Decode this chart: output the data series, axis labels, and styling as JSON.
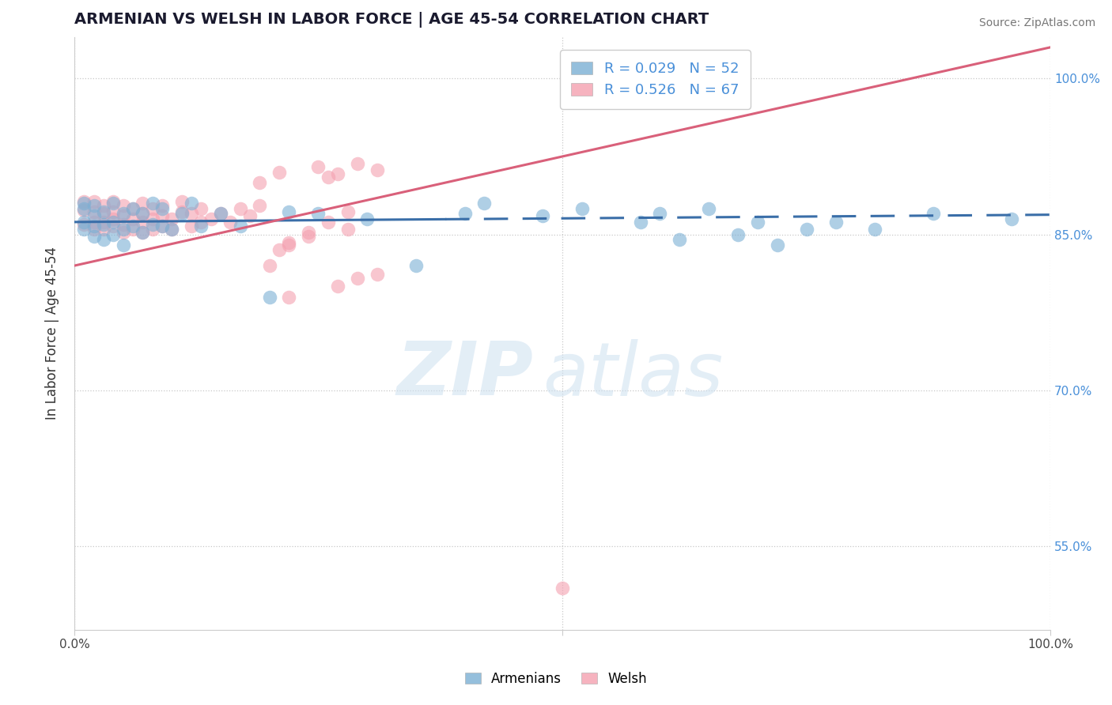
{
  "title": "ARMENIAN VS WELSH IN LABOR FORCE | AGE 45-54 CORRELATION CHART",
  "source_text": "Source: ZipAtlas.com",
  "ylabel": "In Labor Force | Age 45-54",
  "xlim": [
    0.0,
    1.0
  ],
  "ylim": [
    0.47,
    1.04
  ],
  "yticks": [
    0.55,
    0.7,
    0.85,
    1.0
  ],
  "ytick_labels": [
    "55.0%",
    "70.0%",
    "85.0%",
    "100.0%"
  ],
  "armenian_R": 0.029,
  "armenian_N": 52,
  "welsh_R": 0.526,
  "welsh_N": 67,
  "armenian_color": "#7bafd4",
  "welsh_color": "#f4a0b0",
  "armenian_line_color": "#3a6ea8",
  "welsh_line_color": "#d9607a",
  "watermark_zip": "ZIP",
  "watermark_atlas": "atlas",
  "armenian_x": [
    0.01,
    0.01,
    0.01,
    0.01,
    0.02,
    0.02,
    0.02,
    0.02,
    0.03,
    0.03,
    0.03,
    0.04,
    0.04,
    0.04,
    0.05,
    0.05,
    0.05,
    0.06,
    0.06,
    0.07,
    0.07,
    0.08,
    0.08,
    0.09,
    0.09,
    0.1,
    0.11,
    0.12,
    0.13,
    0.15,
    0.17,
    0.2,
    0.22,
    0.25,
    0.3,
    0.35,
    0.4,
    0.42,
    0.48,
    0.52,
    0.58,
    0.6,
    0.62,
    0.65,
    0.68,
    0.7,
    0.72,
    0.75,
    0.78,
    0.82,
    0.88,
    0.96
  ],
  "armenian_y": [
    0.855,
    0.862,
    0.875,
    0.88,
    0.848,
    0.858,
    0.868,
    0.878,
    0.845,
    0.86,
    0.872,
    0.85,
    0.862,
    0.88,
    0.84,
    0.855,
    0.87,
    0.858,
    0.875,
    0.852,
    0.87,
    0.86,
    0.88,
    0.858,
    0.875,
    0.855,
    0.87,
    0.88,
    0.858,
    0.87,
    0.858,
    0.79,
    0.872,
    0.87,
    0.865,
    0.82,
    0.87,
    0.88,
    0.868,
    0.875,
    0.862,
    0.87,
    0.845,
    0.875,
    0.85,
    0.862,
    0.84,
    0.855,
    0.862,
    0.855,
    0.87,
    0.865
  ],
  "welsh_x": [
    0.01,
    0.01,
    0.01,
    0.02,
    0.02,
    0.02,
    0.02,
    0.03,
    0.03,
    0.03,
    0.03,
    0.04,
    0.04,
    0.04,
    0.04,
    0.05,
    0.05,
    0.05,
    0.05,
    0.06,
    0.06,
    0.06,
    0.07,
    0.07,
    0.07,
    0.07,
    0.08,
    0.08,
    0.08,
    0.09,
    0.09,
    0.09,
    0.1,
    0.1,
    0.11,
    0.11,
    0.12,
    0.12,
    0.13,
    0.13,
    0.14,
    0.15,
    0.16,
    0.17,
    0.18,
    0.19,
    0.2,
    0.21,
    0.22,
    0.24,
    0.26,
    0.28,
    0.19,
    0.21,
    0.25,
    0.26,
    0.27,
    0.29,
    0.31,
    0.22,
    0.24,
    0.28,
    0.22,
    0.27,
    0.29,
    0.31,
    0.5
  ],
  "welsh_y": [
    0.86,
    0.873,
    0.882,
    0.855,
    0.862,
    0.872,
    0.882,
    0.855,
    0.862,
    0.87,
    0.878,
    0.858,
    0.865,
    0.872,
    0.882,
    0.852,
    0.86,
    0.868,
    0.878,
    0.855,
    0.865,
    0.875,
    0.852,
    0.862,
    0.87,
    0.88,
    0.855,
    0.865,
    0.875,
    0.858,
    0.868,
    0.878,
    0.855,
    0.865,
    0.872,
    0.882,
    0.858,
    0.87,
    0.862,
    0.875,
    0.865,
    0.87,
    0.862,
    0.875,
    0.868,
    0.878,
    0.82,
    0.835,
    0.842,
    0.852,
    0.862,
    0.872,
    0.9,
    0.91,
    0.915,
    0.905,
    0.908,
    0.918,
    0.912,
    0.84,
    0.848,
    0.855,
    0.79,
    0.8,
    0.808,
    0.812,
    0.51
  ],
  "welsh_line_x0": 0.0,
  "welsh_line_y0": 0.82,
  "welsh_line_x1": 1.0,
  "welsh_line_y1": 1.03,
  "armenian_line_x0": 0.0,
  "armenian_line_y0": 0.862,
  "armenian_line_x1": 0.38,
  "armenian_line_x1_solid_end": 0.38,
  "armenian_line_x2": 0.38,
  "armenian_line_y1": 0.864,
  "armenian_line_x3": 1.0,
  "armenian_line_y2": 0.869
}
